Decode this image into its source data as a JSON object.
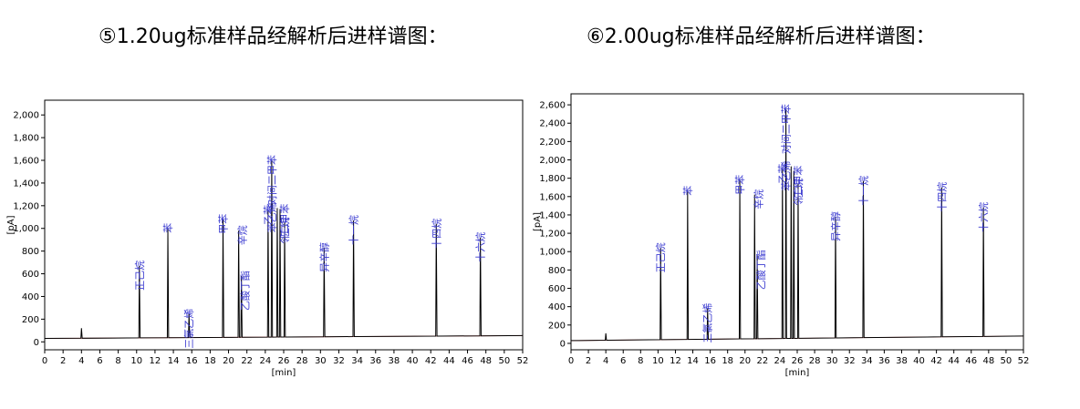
{
  "titles": [
    "⑤1.20ug标准样品经解析后进样谱图：",
    "⑥2.00ug标准样品经解析后进样谱图："
  ],
  "chart_data": [
    {
      "type": "line",
      "title": "⑤1.20ug标准样品经解析后进样谱图：",
      "xlabel": "[min]",
      "ylabel": "[pA]",
      "xlim": [
        0,
        52
      ],
      "ylim": [
        -70,
        2130
      ],
      "xticks": [
        0,
        2,
        4,
        6,
        8,
        10,
        12,
        14,
        16,
        18,
        20,
        22,
        24,
        26,
        28,
        30,
        32,
        34,
        36,
        38,
        40,
        42,
        44,
        46,
        48,
        50,
        52
      ],
      "yticks": [
        0,
        200,
        400,
        600,
        800,
        1000,
        1200,
        1400,
        1600,
        1800,
        2000
      ],
      "ytick_labels": [
        "0",
        "200",
        "400",
        "600",
        "800",
        "1,000",
        "1,200",
        "1,400",
        "1,600",
        "1,800",
        "2,000"
      ],
      "grid": false,
      "baseline": [
        [
          0,
          30
        ],
        [
          52,
          55
        ]
      ],
      "peaks": [
        {
          "t": 4.0,
          "h": 120,
          "label": ""
        },
        {
          "t": 10.3,
          "h": 670,
          "label": "正己烷"
        },
        {
          "t": 13.4,
          "h": 1000,
          "label": "苯"
        },
        {
          "t": 15.7,
          "h": 245,
          "label": "三氯乙烯"
        },
        {
          "t": 19.4,
          "h": 1080,
          "label": "甲苯"
        },
        {
          "t": 21.1,
          "h": 980,
          "label": "辛烷"
        },
        {
          "t": 21.4,
          "h": 580,
          "label": "乙酸丁酯"
        },
        {
          "t": 24.3,
          "h": 1160,
          "label": "乙苯"
        },
        {
          "t": 24.7,
          "h": 1600,
          "label": "对间二甲苯"
        },
        {
          "t": 25.3,
          "h": 1180,
          "label": "苯乙烯"
        },
        {
          "t": 25.6,
          "h": 1170,
          "label": "邻二甲苯"
        },
        {
          "t": 26.1,
          "h": 1050,
          "label": "壬烷"
        },
        {
          "t": 30.4,
          "h": 830,
          "label": "异辛醇"
        },
        {
          "t": 33.6,
          "h": 1070,
          "label": "十一烷"
        },
        {
          "t": 42.6,
          "h": 1040,
          "label": "十四烷"
        },
        {
          "t": 47.4,
          "h": 920,
          "label": "十六烷"
        }
      ]
    },
    {
      "type": "line",
      "title": "⑥2.00ug标准样品经解析后进样谱图：",
      "xlabel": "[min]",
      "ylabel": "[pA]",
      "xlim": [
        0,
        52
      ],
      "ylim": [
        -70,
        2720
      ],
      "xticks": [
        0,
        2,
        4,
        6,
        8,
        10,
        12,
        14,
        16,
        18,
        20,
        22,
        24,
        26,
        28,
        30,
        32,
        34,
        36,
        38,
        40,
        42,
        44,
        46,
        48,
        50,
        52
      ],
      "yticks": [
        0,
        200,
        400,
        600,
        800,
        1000,
        1200,
        1400,
        1600,
        1800,
        2000,
        2200,
        2400,
        2600
      ],
      "ytick_labels": [
        "0",
        "200",
        "400",
        "600",
        "800",
        "1,000",
        "1,200",
        "1,400",
        "1,600",
        "1,800",
        "2,000",
        "2,200",
        "2,400",
        "2,600"
      ],
      "grid": false,
      "baseline": [
        [
          0,
          30
        ],
        [
          52,
          80
        ]
      ],
      "peaks": [
        {
          "t": 4.0,
          "h": 110,
          "label": ""
        },
        {
          "t": 10.3,
          "h": 1040,
          "label": "正己烷"
        },
        {
          "t": 13.4,
          "h": 1660,
          "label": "苯"
        },
        {
          "t": 15.7,
          "h": 380,
          "label": "三氯乙烯"
        },
        {
          "t": 19.4,
          "h": 1780,
          "label": "甲苯"
        },
        {
          "t": 21.1,
          "h": 1620,
          "label": "辛烷"
        },
        {
          "t": 21.4,
          "h": 960,
          "label": "乙酸丁酯"
        },
        {
          "t": 24.3,
          "h": 1900,
          "label": "乙苯"
        },
        {
          "t": 24.7,
          "h": 2550,
          "label": "对间二甲苯"
        },
        {
          "t": 25.3,
          "h": 1930,
          "label": "苯乙烯"
        },
        {
          "t": 25.6,
          "h": 1880,
          "label": "邻二甲苯"
        },
        {
          "t": 26.1,
          "h": 1740,
          "label": "壬烷"
        },
        {
          "t": 30.4,
          "h": 1380,
          "label": "异辛醇"
        },
        {
          "t": 33.6,
          "h": 1770,
          "label": "十一烷"
        },
        {
          "t": 42.6,
          "h": 1700,
          "label": "十四烷"
        },
        {
          "t": 47.4,
          "h": 1480,
          "label": "十六烷"
        }
      ]
    }
  ]
}
